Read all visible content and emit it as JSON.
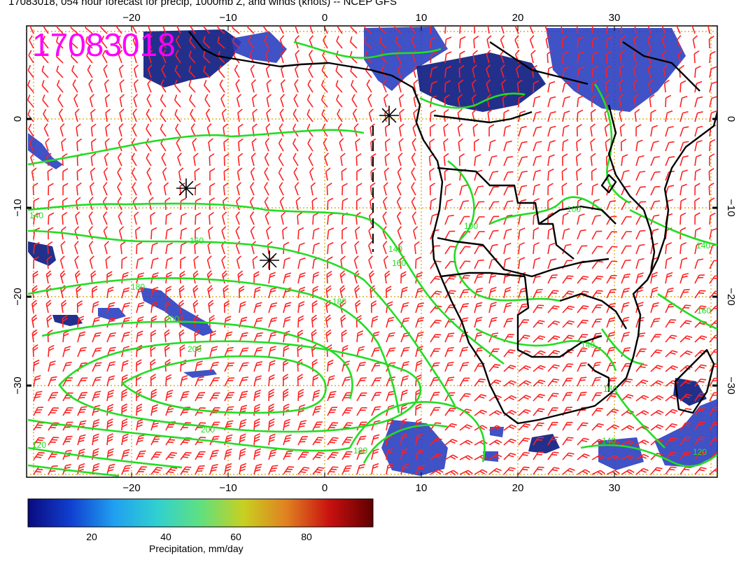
{
  "title": "17083018, 054 hour forecast for precip, 1000mb Z, and winds (knots) -- NCEP GFS",
  "stamp": "17083018",
  "colors": {
    "stamp": "#ff00ff",
    "contour": "#22dd22",
    "barb": "#ff2020",
    "coast": "#000000",
    "grid": "#d4a000",
    "precip_light": "#2a3fc0",
    "precip_dark": "#0a1a80"
  },
  "axes": {
    "lon_ticks": [
      "−20",
      "−10",
      "0",
      "10",
      "20",
      "30"
    ],
    "lat_ticks": [
      "0",
      "−10",
      "−20",
      "−30"
    ]
  },
  "contour_labels": [
    "140",
    "160",
    "180",
    "200",
    "200",
    "180",
    "160",
    "140",
    "120",
    "100",
    "100",
    "140",
    "160",
    "180",
    "200",
    "120",
    "140",
    "140",
    "160"
  ],
  "markers": [
    "high-pressure-marker",
    "high-pressure-marker",
    "high-pressure-marker"
  ],
  "colorbar": {
    "label": "Precipitation, mm/day",
    "ticks": [
      "20",
      "40",
      "60",
      "80"
    ],
    "stops": [
      "#0a0a80",
      "#1040d0",
      "#20a0f0",
      "#30d0d0",
      "#60e080",
      "#c8d020",
      "#e08020",
      "#c81010",
      "#600000"
    ]
  }
}
